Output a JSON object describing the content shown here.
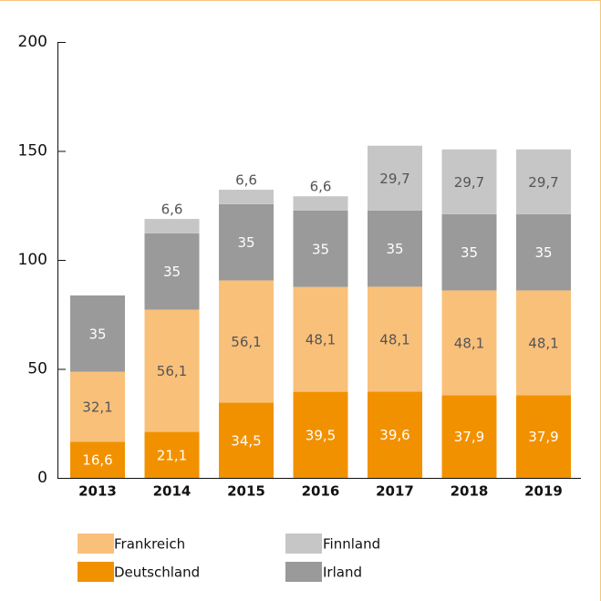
{
  "chart_data": {
    "type": "stacked_bar",
    "categories": [
      "2013",
      "2014",
      "2015",
      "2016",
      "2017",
      "2018",
      "2019"
    ],
    "series": [
      {
        "name": "Deutschland",
        "color": "#f29100",
        "values": [
          16.6,
          21.1,
          34.5,
          39.5,
          39.6,
          37.9,
          37.9
        ],
        "value_labels": [
          "16,6",
          "21,1",
          "34,5",
          "39,5",
          "39,6",
          "37,9",
          "37,9"
        ]
      },
      {
        "name": "Frankreich",
        "color": "#f9c07a",
        "values": [
          32.1,
          56.1,
          56.1,
          48.1,
          48.1,
          48.1,
          48.1
        ],
        "value_labels": [
          "32,1",
          "56,1",
          "56,1",
          "48,1",
          "48,1",
          "48,1",
          "48,1"
        ]
      },
      {
        "name": "Irland",
        "color": "#9a9a9a",
        "values": [
          35,
          35,
          35,
          35,
          35,
          35,
          35
        ]
      },
      {
        "name": "Finnland",
        "color": "#c6c6c6",
        "values": [
          null,
          6.6,
          6.6,
          6.6,
          29.7,
          29.7,
          29.7
        ],
        "value_labels": [
          null,
          "6,6",
          "6,6",
          "6,6",
          "29,7",
          "29,7",
          "29,7"
        ]
      }
    ],
    "ylim": [
      0,
      200
    ],
    "yticks": [
      0,
      50,
      100,
      150,
      200
    ]
  }
}
